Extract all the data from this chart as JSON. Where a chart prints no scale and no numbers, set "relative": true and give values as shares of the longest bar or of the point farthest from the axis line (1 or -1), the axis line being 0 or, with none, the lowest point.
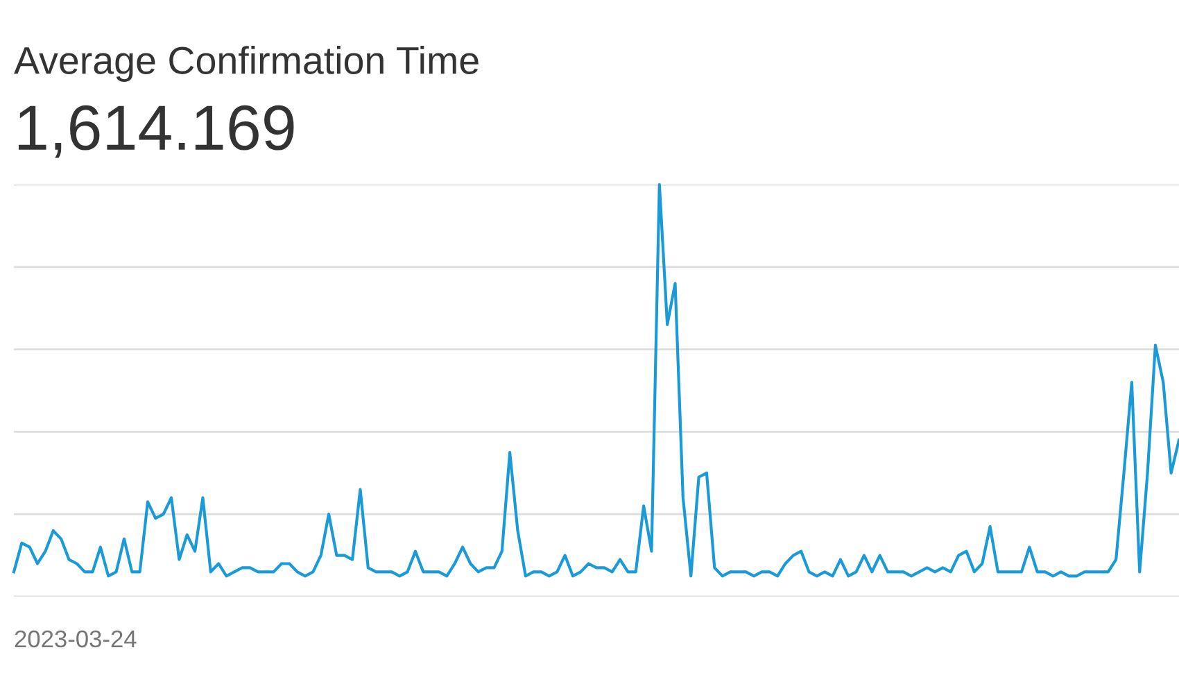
{
  "chart_data": {
    "type": "line",
    "title": "Average Confirmation Time",
    "subtitle": "1,614.169",
    "relative": true,
    "grid": "y",
    "legend": false,
    "marker": "none",
    "line_style": "solid",
    "annotations": [
      "2023-03-24"
    ],
    "categories": [
      null,
      null,
      null,
      null,
      null,
      null,
      null,
      null,
      null,
      null,
      null,
      null,
      null,
      null,
      null,
      null,
      null,
      null,
      null,
      null,
      null,
      null,
      null,
      null,
      null,
      null,
      null,
      null,
      null,
      null,
      null,
      null,
      null,
      null,
      null,
      null,
      null,
      null,
      null,
      null,
      null,
      null,
      null,
      null,
      null,
      null,
      null,
      null,
      null,
      null,
      null,
      null,
      null,
      null,
      null,
      null,
      null,
      null,
      null,
      null,
      null,
      null,
      null,
      null,
      null,
      null,
      null,
      null,
      null,
      null,
      null,
      null,
      null,
      null,
      null,
      null,
      null,
      null,
      null,
      null,
      null,
      null,
      null,
      null,
      null,
      null,
      null,
      null,
      null,
      null,
      null,
      null,
      null,
      null,
      null,
      null,
      null,
      null,
      null,
      null,
      null,
      null,
      null,
      null,
      null,
      null,
      null,
      null,
      null,
      null,
      null,
      null,
      null,
      null,
      null,
      null,
      null,
      null,
      null,
      null,
      null,
      null,
      null,
      null,
      null,
      null,
      null,
      null,
      null,
      null,
      null,
      null,
      null,
      null,
      null,
      null,
      null,
      null,
      null,
      null,
      null,
      null,
      null,
      null,
      null,
      null,
      null,
      null,
      null
    ],
    "series": [
      {
        "color": "#1a9bd7",
        "values": [
          0.06,
          0.13,
          0.12,
          0.08,
          0.11,
          0.16,
          0.14,
          0.09,
          0.08,
          0.06,
          0.06,
          0.12,
          0.05,
          0.06,
          0.14,
          0.06,
          0.06,
          0.23,
          0.19,
          0.2,
          0.24,
          0.09,
          0.15,
          0.11,
          0.24,
          0.06,
          0.08,
          0.05,
          0.06,
          0.07,
          0.07,
          0.06,
          0.06,
          0.06,
          0.08,
          0.08,
          0.06,
          0.05,
          0.06,
          0.1,
          0.2,
          0.1,
          0.1,
          0.09,
          0.26,
          0.07,
          0.06,
          0.06,
          0.06,
          0.05,
          0.06,
          0.11,
          0.06,
          0.06,
          0.06,
          0.05,
          0.08,
          0.12,
          0.08,
          0.06,
          0.07,
          0.07,
          0.11,
          0.35,
          0.16,
          0.05,
          0.06,
          0.06,
          0.05,
          0.06,
          0.1,
          0.05,
          0.06,
          0.08,
          0.07,
          0.07,
          0.06,
          0.09,
          0.06,
          0.06,
          0.22,
          0.11,
          1,
          0.66,
          0.76,
          0.24,
          0.05,
          0.29,
          0.3,
          0.07,
          0.05,
          0.06,
          0.06,
          0.06,
          0.05,
          0.06,
          0.06,
          0.05,
          0.08,
          0.1,
          0.11,
          0.06,
          0.05,
          0.06,
          0.05,
          0.09,
          0.05,
          0.06,
          0.1,
          0.06,
          0.1,
          0.06,
          0.06,
          0.06,
          0.05,
          0.06,
          0.07,
          0.06,
          0.07,
          0.06,
          0.1,
          0.11,
          0.06,
          0.08,
          0.17,
          0.06,
          0.06,
          0.06,
          0.06,
          0.12,
          0.06,
          0.06,
          0.05,
          0.06,
          0.05,
          0.05,
          0.06,
          0.06,
          0.06,
          0.06,
          0.09,
          0.3,
          0.52,
          0.06,
          0.3,
          0.61,
          0.52,
          0.3,
          0.38
        ]
      }
    ]
  }
}
